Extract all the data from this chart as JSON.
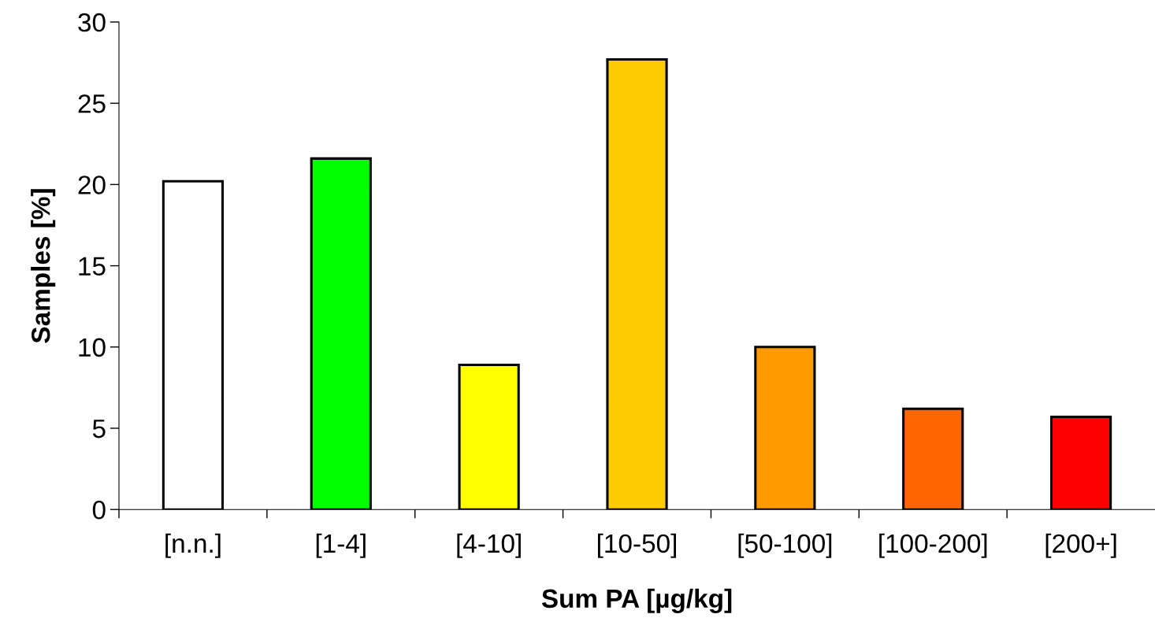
{
  "chart_data": {
    "type": "bar",
    "xlabel": "Sum PA [µg/kg]",
    "ylabel": "Samples [%]",
    "categories": [
      "[n.n.]",
      "[1-4]",
      "[4-10]",
      "[10-50]",
      "[50-100]",
      "[100-200]",
      "[200+]"
    ],
    "values": [
      20.2,
      21.6,
      8.9,
      27.7,
      10.0,
      6.2,
      5.7
    ],
    "colors": [
      "#ffffff",
      "#00ff00",
      "#ffff00",
      "#ffcc00",
      "#ff9900",
      "#ff6600",
      "#ff0000"
    ],
    "ylim": [
      0,
      30
    ],
    "yticks": [
      0,
      5,
      10,
      15,
      20,
      25,
      30
    ],
    "grid": false,
    "legend": false
  }
}
